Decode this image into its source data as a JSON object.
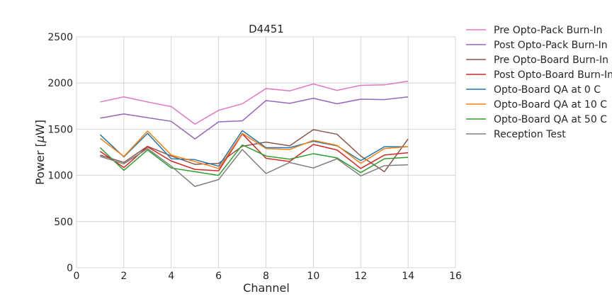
{
  "chart_data": {
    "type": "line",
    "title": "D4451",
    "xlabel": "Channel",
    "ylabel": "Power [μW]",
    "ylabel_prefix": "Power [",
    "ylabel_unit_symbol": "μ",
    "ylabel_suffix": "W]",
    "xlim": [
      0,
      16
    ],
    "ylim": [
      0,
      2500
    ],
    "xticks": [
      0,
      2,
      4,
      6,
      8,
      10,
      12,
      14,
      16
    ],
    "yticks": [
      0,
      500,
      1000,
      1500,
      2000,
      2500
    ],
    "grid": true,
    "legend_position": "outside-right",
    "x": [
      1,
      2,
      3,
      4,
      5,
      6,
      7,
      8,
      9,
      10,
      11,
      12,
      13,
      14
    ],
    "series": [
      {
        "name": "Pre Opto-Pack Burn-In",
        "color": "#e377c2",
        "values": [
          1795,
          1850,
          1795,
          1745,
          1555,
          1705,
          1775,
          1940,
          1915,
          1990,
          1920,
          1975,
          1980,
          2020
        ]
      },
      {
        "name": "Post Opto-Pack Burn-In",
        "color": "#9467bd",
        "values": [
          1620,
          1665,
          1625,
          1585,
          1395,
          1580,
          1590,
          1810,
          1780,
          1835,
          1775,
          1825,
          1820,
          1850
        ]
      },
      {
        "name": "Pre Opto-Board Burn-In",
        "color": "#8c564b",
        "values": [
          1220,
          1140,
          1315,
          1210,
          1120,
          1130,
          1315,
          1360,
          1320,
          1495,
          1445,
          1210,
          1040,
          1395
        ]
      },
      {
        "name": "Post Opto-Board Burn-In",
        "color": "#d62728",
        "values": [
          1260,
          1085,
          1310,
          1155,
          1065,
          1050,
          1450,
          1185,
          1150,
          1335,
          1275,
          1075,
          1220,
          1245
        ]
      },
      {
        "name": "Opto-Board QA at 0 C",
        "color": "#1f77b4",
        "values": [
          1440,
          1200,
          1455,
          1180,
          1170,
          1100,
          1485,
          1300,
          1300,
          1370,
          1320,
          1160,
          1310,
          1310
        ]
      },
      {
        "name": "Opto-Board QA at 10 C",
        "color": "#ff7f0e",
        "values": [
          1400,
          1205,
          1480,
          1220,
          1150,
          1075,
          1455,
          1290,
          1280,
          1380,
          1325,
          1130,
          1290,
          1310
        ]
      },
      {
        "name": "Opto-Board QA at 50 C",
        "color": "#2ca02c",
        "values": [
          1300,
          1055,
          1275,
          1080,
          1040,
          1000,
          1330,
          1210,
          1175,
          1235,
          1190,
          1030,
          1180,
          1195
        ]
      },
      {
        "name": "Reception Test",
        "color": "#7f7f7f",
        "values": [
          1205,
          1125,
          1290,
          1100,
          880,
          955,
          1280,
          1020,
          1140,
          1080,
          1180,
          995,
          1105,
          1115
        ]
      }
    ]
  }
}
